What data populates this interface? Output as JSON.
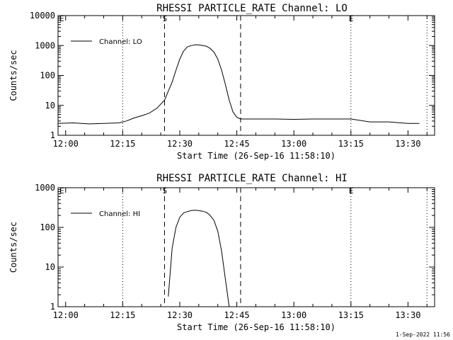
{
  "footer_date": "1-Sep-2022 11:56",
  "chart_data": [
    {
      "type": "line",
      "title": "RHESSI PARTICLE_RATE Channel: LO",
      "xlabel": "Start Time (26-Sep-16 11:58:10)",
      "ylabel": "Counts/sec",
      "yscale": "log",
      "ylim": [
        1,
        10000
      ],
      "xlim": [
        "11:58",
        "13:37"
      ],
      "x_ticks": [
        "12:00",
        "12:15",
        "12:30",
        "12:45",
        "13:00",
        "13:15",
        "13:30"
      ],
      "y_ticks": [
        "1",
        "10",
        "100",
        "1000",
        "10000"
      ],
      "legend": "top-left",
      "markers": {
        "E_start": "11:58",
        "S": "12:26",
        "E_end": "13:15",
        "dotted": [
          "12:15",
          "13:15",
          "13:35"
        ],
        "dashed": [
          "12:26",
          "12:46"
        ]
      },
      "marker_labels": {
        "E": "E",
        "S": "S"
      },
      "series": [
        {
          "name": "Channel: LO",
          "x": [
            "11:58",
            "12:02",
            "12:06",
            "12:10",
            "12:14",
            "12:16",
            "12:18",
            "12:20",
            "12:22",
            "12:24",
            "12:26",
            "12:27",
            "12:28",
            "12:29",
            "12:30",
            "12:31",
            "12:32",
            "12:33",
            "12:34",
            "12:35",
            "12:36",
            "12:37",
            "12:38",
            "12:39",
            "12:40",
            "12:41",
            "12:42",
            "12:43",
            "12:44",
            "12:45",
            "12:46",
            "12:50",
            "12:55",
            "13:00",
            "13:05",
            "13:10",
            "13:15",
            "13:20",
            "13:25",
            "13:30",
            "13:33"
          ],
          "y": [
            2.5,
            2.6,
            2.4,
            2.5,
            2.6,
            3.0,
            3.8,
            4.5,
            5.5,
            8.0,
            15,
            30,
            60,
            150,
            350,
            650,
            900,
            1000,
            1050,
            1050,
            1000,
            950,
            800,
            600,
            350,
            150,
            50,
            15,
            6,
            4,
            3.5,
            3.5,
            3.5,
            3.4,
            3.5,
            3.5,
            3.5,
            2.8,
            2.8,
            2.5,
            2.5
          ]
        }
      ]
    },
    {
      "type": "line",
      "title": "RHESSI PARTICLE_RATE Channel: HI",
      "xlabel": "Start Time (26-Sep-16 11:58:10)",
      "ylabel": "Counts/sec",
      "yscale": "log",
      "ylim": [
        1,
        1000
      ],
      "xlim": [
        "11:58",
        "13:37"
      ],
      "x_ticks": [
        "12:00",
        "12:15",
        "12:30",
        "12:45",
        "13:00",
        "13:15",
        "13:30"
      ],
      "y_ticks": [
        "1",
        "10",
        "100",
        "1000"
      ],
      "legend": "top-left",
      "markers": {
        "E_start": "11:58",
        "S": "12:26",
        "E_end": "13:15",
        "dotted": [
          "12:15",
          "13:15",
          "13:35"
        ],
        "dashed": [
          "12:26",
          "12:46"
        ]
      },
      "marker_labels": {
        "E": "E",
        "S": "S"
      },
      "series": [
        {
          "name": "Channel: HI",
          "x": [
            "12:27",
            "12:28",
            "12:29",
            "12:30",
            "12:31",
            "12:32",
            "12:33",
            "12:34",
            "12:35",
            "12:36",
            "12:37",
            "12:38",
            "12:39",
            "12:40",
            "12:41",
            "12:42",
            "12:43"
          ],
          "y": [
            1.8,
            30,
            100,
            180,
            230,
            250,
            265,
            270,
            265,
            255,
            240,
            200,
            150,
            80,
            25,
            5,
            1
          ]
        }
      ]
    }
  ]
}
